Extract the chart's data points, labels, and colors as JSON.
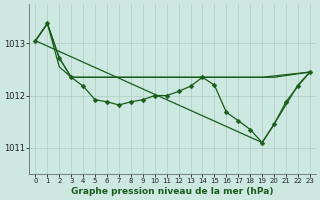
{
  "bg": "#cce8e0",
  "grid_color": "#aacfc5",
  "lc": "#1a5c1a",
  "ylim": [
    1010.5,
    1013.75
  ],
  "xlim": [
    -0.5,
    23.5
  ],
  "yticks": [
    1011,
    1012,
    1013
  ],
  "ytick_labels": [
    "1011",
    "1012",
    "1013"
  ],
  "line_no_marker_A_x": [
    0,
    1,
    2,
    3,
    10,
    14,
    19,
    20,
    23
  ],
  "line_no_marker_A_y": [
    1013.05,
    1013.38,
    1012.55,
    1012.35,
    1012.35,
    1012.35,
    1012.35,
    1012.35,
    1012.45
  ],
  "line_no_marker_B_x": [
    0,
    1,
    2,
    3,
    14,
    19,
    23
  ],
  "line_no_marker_B_y": [
    1013.05,
    1013.38,
    1012.72,
    1012.35,
    1012.35,
    1012.35,
    1012.45
  ],
  "line_diagonal_x": [
    0,
    19,
    20,
    22,
    23
  ],
  "line_diagonal_y": [
    1013.05,
    1011.1,
    1011.45,
    1012.2,
    1012.45
  ],
  "line_markers_x": [
    0,
    1,
    2,
    3,
    4,
    5,
    6,
    7,
    8,
    9,
    10,
    11,
    12,
    13,
    14,
    15,
    16,
    17,
    18,
    19,
    20,
    21,
    22,
    23
  ],
  "line_markers_y": [
    1013.05,
    1013.38,
    1012.72,
    1012.35,
    1012.18,
    1011.92,
    1011.88,
    1011.82,
    1011.88,
    1011.92,
    1012.0,
    1012.0,
    1012.08,
    1012.18,
    1012.35,
    1012.2,
    1011.68,
    1011.52,
    1011.35,
    1011.1,
    1011.45,
    1011.88,
    1012.18,
    1012.45
  ],
  "xlabel": "Graphe pression niveau de la mer (hPa)",
  "xlabel_fontsize": 6.5,
  "tick_fontsize": 5.0,
  "ytick_fontsize": 6.0,
  "lw": 0.9,
  "marker_size": 2.5
}
